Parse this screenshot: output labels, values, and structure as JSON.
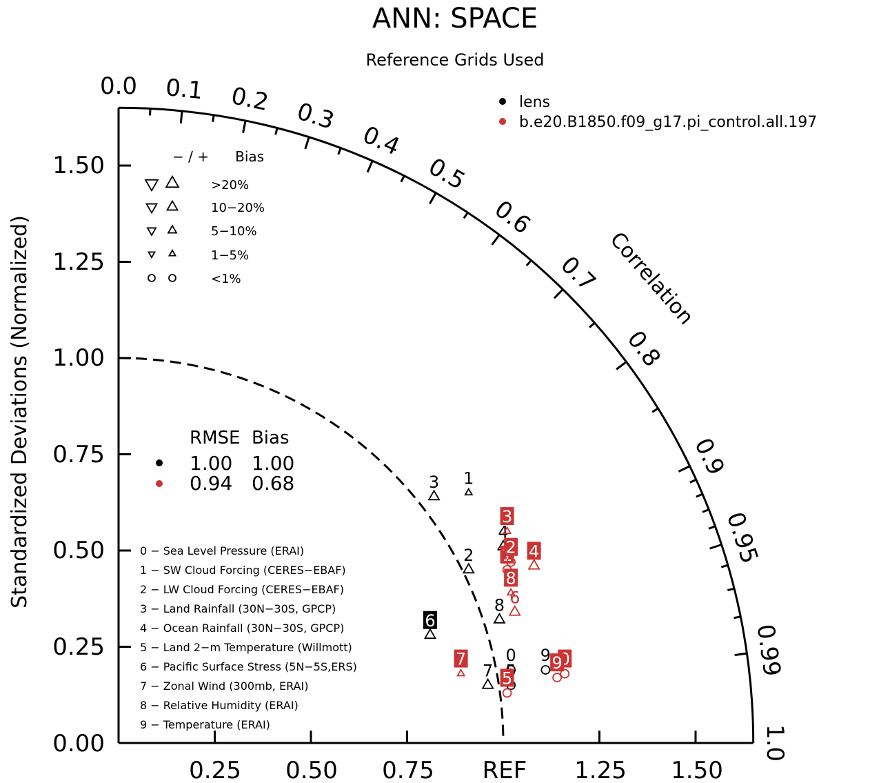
{
  "chart_data": {
    "type": "scatter",
    "subtype": "taylor-diagram",
    "title": "ANN: SPACE",
    "subtitle": "Reference Grids Used",
    "ylabel": "Standardized Deviations (Normalized)",
    "arc_label": "Correlation",
    "ref_label": "REF",
    "x_ticks": [
      "0.25",
      "0.50",
      "0.75",
      "1.25",
      "1.50"
    ],
    "y_ticks": [
      "0.00",
      "0.25",
      "0.50",
      "0.75",
      "1.00",
      "1.25",
      "1.50"
    ],
    "ylim": [
      0,
      1.65
    ],
    "correlation_labels": [
      "0.0",
      "0.1",
      "0.2",
      "0.3",
      "0.4",
      "0.5",
      "0.6",
      "0.7",
      "0.8",
      "0.9",
      "0.95",
      "0.99",
      "1.0"
    ],
    "legend": [
      {
        "name": "lens",
        "color": "#000000"
      },
      {
        "name": "b.e20.B1850.f09_g17.pi_control.all.197",
        "color": "#cc3333"
      }
    ],
    "bias_legend": {
      "header": "− / +      Bias",
      "rows": [
        ">20%",
        "10−20%",
        "5−10%",
        "1−5%",
        "<1%"
      ]
    },
    "rmse_table": {
      "header": "RMSE  Bias",
      "rows": [
        {
          "color": "#000000",
          "rmse": "1.00",
          "bias": "1.00"
        },
        {
          "color": "#cc3333",
          "rmse": "0.94",
          "bias": "0.68"
        }
      ]
    },
    "variables": [
      "0 − Sea Level Pressure (ERAI)",
      "1 − SW Cloud Forcing (CERES−EBAF)",
      "2 − LW Cloud Forcing (CERES−EBAF)",
      "3 − Land Rainfall (30N−30S, GPCP)",
      "4 − Ocean Rainfall (30N−30S, GPCP)",
      "5 − Land 2−m Temperature (Willmott)",
      "6 − Pacific Surface Stress (5N−5S,ERS)",
      "7 − Zonal Wind (300mb, ERAI)",
      "8 − Relative Humidity (ERAI)",
      "9 − Temperature (ERAI)"
    ],
    "series": [
      {
        "name": "lens",
        "color": "#000000",
        "points": [
          {
            "label": "0",
            "x": 1.02,
            "y": 0.19,
            "marker": "circle"
          },
          {
            "label": "1",
            "x": 0.91,
            "y": 0.65,
            "marker": "triangle-up-small"
          },
          {
            "label": "2",
            "x": 0.91,
            "y": 0.45,
            "marker": "triangle-up"
          },
          {
            "label": "3",
            "x": 0.82,
            "y": 0.64,
            "marker": "triangle-up"
          },
          {
            "label": "4",
            "x": 1.0,
            "y": 0.51,
            "marker": "triangle-up"
          },
          {
            "label": "5",
            "x": 1.02,
            "y": 0.15,
            "marker": "circle"
          },
          {
            "label": "6",
            "x": 0.81,
            "y": 0.28,
            "marker": "triangle-up",
            "boxed": true
          },
          {
            "label": "7",
            "x": 0.96,
            "y": 0.15,
            "marker": "triangle-up"
          },
          {
            "label": "8",
            "x": 0.99,
            "y": 0.32,
            "marker": "triangle-up"
          },
          {
            "label": "9",
            "x": 1.11,
            "y": 0.19,
            "marker": "circle"
          }
        ]
      },
      {
        "name": "b.e20.B1850.f09_g17.pi_control.all.197",
        "color": "#cc3333",
        "points": [
          {
            "label": "0",
            "x": 1.16,
            "y": 0.18,
            "marker": "circle",
            "boxed": true
          },
          {
            "label": "1",
            "x": 1.01,
            "y": 0.45,
            "marker": "circle",
            "boxed": true
          },
          {
            "label": "2",
            "x": 1.02,
            "y": 0.47,
            "marker": "circle",
            "boxed": true
          },
          {
            "label": "3",
            "x": 1.01,
            "y": 0.55,
            "marker": "triangle-up-small",
            "boxed": true
          },
          {
            "label": "4",
            "x": 1.08,
            "y": 0.46,
            "marker": "triangle-up",
            "boxed": true
          },
          {
            "label": "5",
            "x": 1.01,
            "y": 0.13,
            "marker": "circle",
            "boxed": true
          },
          {
            "label": "6",
            "x": 1.03,
            "y": 0.34,
            "marker": "triangle-up"
          },
          {
            "label": "7",
            "x": 0.89,
            "y": 0.18,
            "marker": "triangle-up-small",
            "boxed": true
          },
          {
            "label": "8",
            "x": 1.02,
            "y": 0.39,
            "marker": "triangle-up-small",
            "boxed": true
          },
          {
            "label": "9",
            "x": 1.14,
            "y": 0.17,
            "marker": "circle",
            "boxed": true
          }
        ]
      }
    ]
  }
}
